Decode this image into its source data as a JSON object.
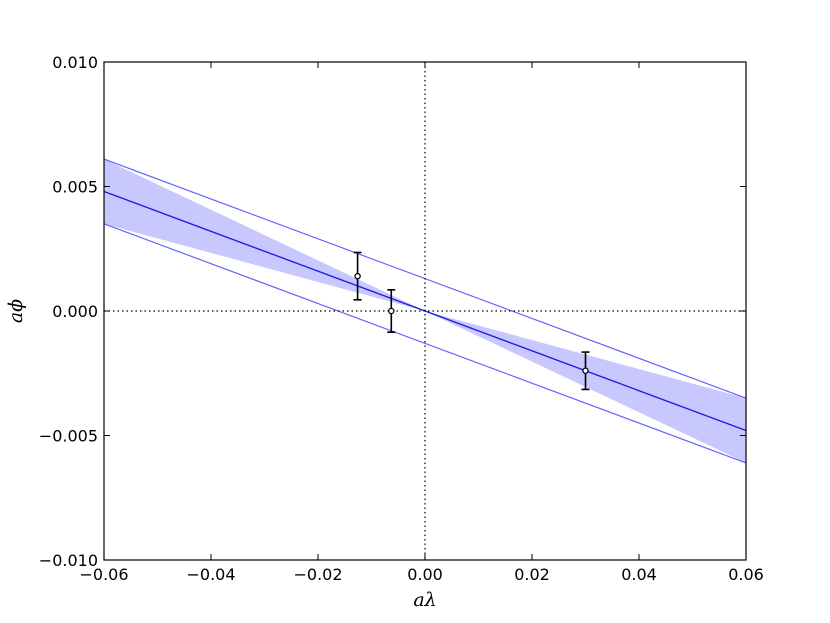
{
  "chart_data": {
    "type": "line",
    "title": "",
    "xlabel": "aλ",
    "ylabel": "aϕ",
    "xlim": [
      -0.06,
      0.06
    ],
    "ylim": [
      -0.01,
      0.01
    ],
    "x_ticks": [
      -0.06,
      -0.04,
      -0.02,
      0.0,
      0.02,
      0.04,
      0.06
    ],
    "x_tick_labels": [
      "−0.06",
      "−0.04",
      "−0.02",
      "0.00",
      "0.02",
      "0.04",
      "0.06"
    ],
    "y_ticks": [
      -0.01,
      -0.005,
      0.0,
      0.005,
      0.01
    ],
    "y_tick_labels": [
      "−0.010",
      "−0.005",
      "0.000",
      "0.005",
      "0.010"
    ],
    "grid": false,
    "reference_lines": {
      "x": 0.0,
      "y": 0.0,
      "style": "dotted"
    },
    "fit": {
      "x": [
        -0.06,
        0.06
      ],
      "y": [
        0.0048,
        -0.0048
      ],
      "band_upper": [
        0.0061,
        -0.0035
      ],
      "band_lower": [
        0.0035,
        -0.0061
      ],
      "line_color": "#1f1fe6",
      "band_color": "#c8c8ff",
      "band_edge_color": "#6666ff"
    },
    "points": {
      "x": [
        -0.0126,
        -0.0063,
        0.03
      ],
      "y": [
        0.0014,
        0.0,
        -0.0024
      ],
      "yerr": [
        0.00095,
        0.00085,
        0.00075
      ],
      "color": "#000000"
    }
  }
}
